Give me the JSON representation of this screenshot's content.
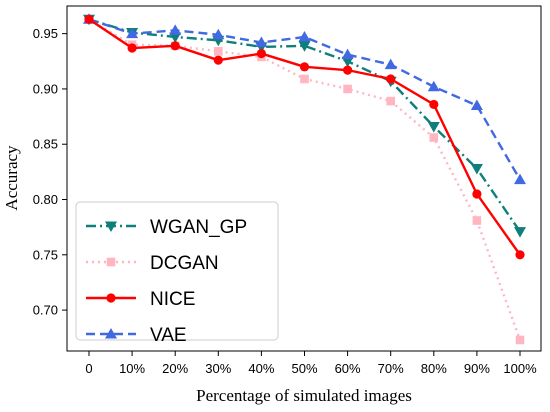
{
  "chart_data": {
    "type": "line",
    "xlabel": "Percentage of simulated images",
    "ylabel": "Accuracy",
    "categories": [
      "0",
      "10%",
      "20%",
      "30%",
      "40%",
      "50%",
      "60%",
      "70%",
      "80%",
      "90%",
      "100%"
    ],
    "yticks": [
      "0.70",
      "0.75",
      "0.80",
      "0.85",
      "0.90",
      "0.95"
    ],
    "ylim": [
      0.663,
      0.975
    ],
    "grid": false,
    "legend_position": "lower-left",
    "series": [
      {
        "name": "WGAN_GP",
        "color": "#0e7f7a",
        "linestyle": "dashdot",
        "marker": "triangle-down",
        "values": [
          0.963,
          0.951,
          0.947,
          0.944,
          0.938,
          0.939,
          0.925,
          0.907,
          0.866,
          0.828,
          0.771
        ]
      },
      {
        "name": "DCGAN",
        "color": "#ffb6c1",
        "linestyle": "dotted",
        "marker": "square",
        "values": [
          0.963,
          0.94,
          0.939,
          0.934,
          0.929,
          0.909,
          0.9,
          0.889,
          0.856,
          0.781,
          0.673
        ]
      },
      {
        "name": "NICE",
        "color": "#ff0000",
        "linestyle": "solid",
        "marker": "circle",
        "values": [
          0.963,
          0.937,
          0.939,
          0.926,
          0.932,
          0.92,
          0.917,
          0.909,
          0.886,
          0.805,
          0.75
        ]
      },
      {
        "name": "VAE",
        "color": "#4169e1",
        "linestyle": "dashed",
        "marker": "triangle-up",
        "values": [
          0.963,
          0.95,
          0.953,
          0.949,
          0.942,
          0.947,
          0.931,
          0.922,
          0.902,
          0.885,
          0.818
        ]
      }
    ]
  }
}
